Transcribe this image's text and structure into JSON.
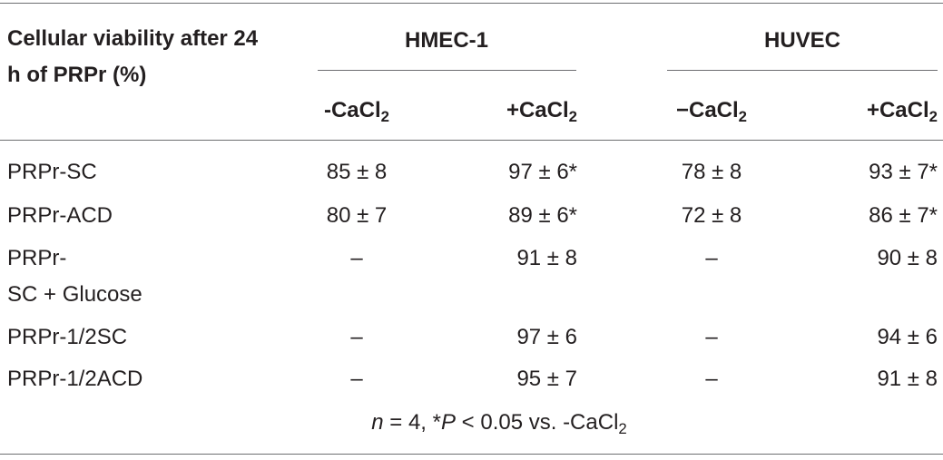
{
  "header": {
    "stub": "Cellular viability after 24 h of PRPr (%)",
    "groups": [
      "HMEC-1",
      "HUVEC"
    ],
    "columns": [
      {
        "main": "-CaCl",
        "sub": "2"
      },
      {
        "main": "+CaCl",
        "sub": "2"
      },
      {
        "main": "−CaCl",
        "sub": "2"
      },
      {
        "main": "+CaCl",
        "sub": "2"
      }
    ]
  },
  "table": {
    "rows": [
      [
        "PRPr-SC",
        "85 ± 8",
        "97 ± 6*",
        "78 ± 8",
        "93 ± 7*"
      ],
      [
        "PRPr-ACD",
        "80 ± 7",
        "89 ± 6*",
        "72 ± 8",
        "86 ± 7*"
      ],
      [
        "PRPr-\nSC + Glucose",
        "–",
        "91 ± 8",
        "–",
        "90 ± 8"
      ],
      [
        "PRPr-1/2SC",
        "–",
        "97 ± 6",
        "–",
        "94 ± 6"
      ],
      [
        "PRPr-1/2ACD",
        "–",
        "95 ± 7",
        "–",
        "91 ± 8"
      ]
    ]
  },
  "footnote": [
    "n",
    " = 4, *",
    "P",
    " < 0.05 vs. -CaCl",
    "2"
  ]
}
